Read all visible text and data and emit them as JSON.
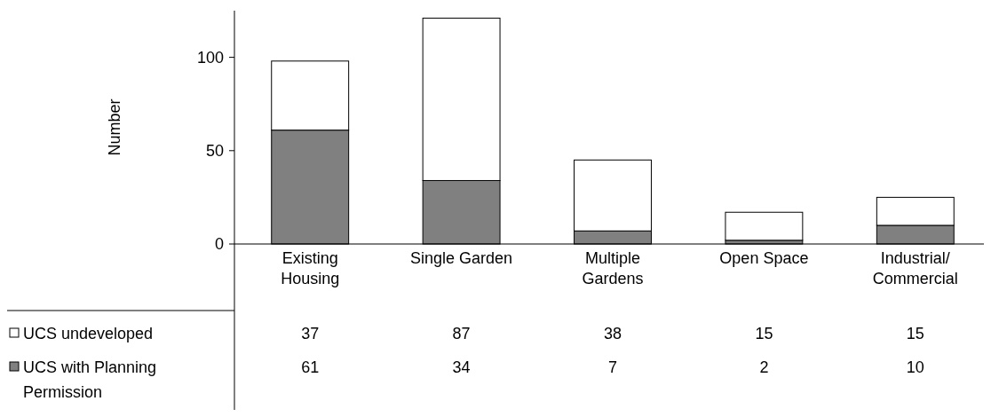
{
  "chart_data": {
    "type": "bar",
    "ylabel": "Number",
    "categories": [
      "Existing Housing",
      "Single Garden",
      "Multiple Gardens",
      "Open Space",
      "Industrial/Commercial"
    ],
    "stacked": true,
    "series": [
      {
        "name": "UCS with Planning Permission",
        "color": "#808080",
        "values": [
          61,
          34,
          7,
          2,
          10
        ]
      },
      {
        "name": "UCS undeveloped",
        "color": "#ffffff",
        "values": [
          37,
          87,
          38,
          15,
          15
        ]
      }
    ],
    "ylim": [
      0,
      125
    ],
    "yticks": [
      0,
      50,
      100
    ],
    "grid": false,
    "legend": "bottom left",
    "data_labels": true
  }
}
